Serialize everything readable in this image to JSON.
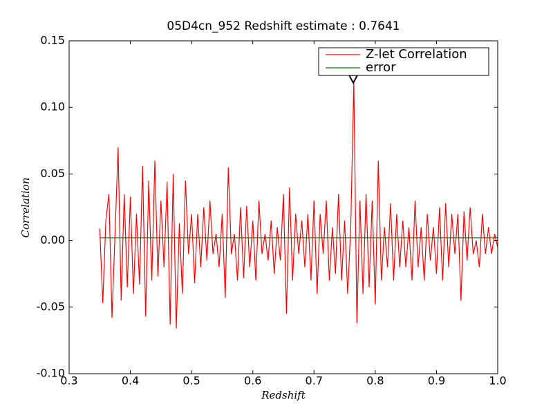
{
  "chart_data": {
    "type": "line",
    "title": "05D4cn_952 Redshift estimate : 0.7641",
    "xlabel": "Redshift",
    "ylabel": "Correlation",
    "xlim": [
      0.3,
      1.0
    ],
    "ylim": [
      -0.1,
      0.15
    ],
    "xticks": [
      0.3,
      0.4,
      0.5,
      0.6,
      0.7,
      0.8,
      0.9,
      {
        "value": 1.0,
        "label": "1.0"
      }
    ],
    "yticks": [
      {
        "value": -0.1,
        "label": "-0.10"
      },
      -0.05,
      {
        "value": 0,
        "label": "0.00"
      },
      0.05,
      {
        "value": 0.1,
        "label": "0.10"
      },
      0.15
    ],
    "legend": "upper right",
    "series": [
      {
        "name": "Z-let Correlation",
        "color": "#ff0000",
        "x": [
          0.35,
          0.355,
          0.36,
          0.365,
          0.37,
          0.375,
          0.38,
          0.385,
          0.39,
          0.395,
          0.4,
          0.405,
          0.41,
          0.415,
          0.42,
          0.425,
          0.43,
          0.435,
          0.44,
          0.445,
          0.45,
          0.455,
          0.46,
          0.465,
          0.47,
          0.475,
          0.48,
          0.485,
          0.49,
          0.495,
          0.5,
          0.505,
          0.51,
          0.515,
          0.52,
          0.525,
          0.53,
          0.535,
          0.54,
          0.545,
          0.55,
          0.555,
          0.56,
          0.565,
          0.57,
          0.575,
          0.58,
          0.585,
          0.59,
          0.595,
          0.6,
          0.605,
          0.61,
          0.615,
          0.62,
          0.625,
          0.63,
          0.635,
          0.64,
          0.645,
          0.65,
          0.655,
          0.66,
          0.665,
          0.67,
          0.675,
          0.68,
          0.685,
          0.69,
          0.695,
          0.7,
          0.705,
          0.71,
          0.715,
          0.72,
          0.725,
          0.73,
          0.735,
          0.74,
          0.745,
          0.75,
          0.755,
          0.76,
          0.765,
          0.77,
          0.775,
          0.78,
          0.785,
          0.79,
          0.795,
          0.8,
          0.805,
          0.81,
          0.815,
          0.82,
          0.825,
          0.83,
          0.835,
          0.84,
          0.845,
          0.85,
          0.855,
          0.86,
          0.865,
          0.87,
          0.875,
          0.88,
          0.885,
          0.89,
          0.895,
          0.9,
          0.905,
          0.91,
          0.915,
          0.92,
          0.925,
          0.93,
          0.935,
          0.94,
          0.945,
          0.95,
          0.955,
          0.96,
          0.965,
          0.97,
          0.975,
          0.98,
          0.985,
          0.99,
          0.995,
          1.0
        ],
        "values": [
          0.009,
          -0.047,
          0.015,
          0.035,
          -0.058,
          0.005,
          0.07,
          -0.045,
          0.035,
          -0.035,
          0.033,
          -0.04,
          0.02,
          -0.033,
          0.056,
          -0.057,
          0.045,
          -0.03,
          0.06,
          -0.027,
          0.03,
          -0.02,
          0.044,
          -0.063,
          0.05,
          -0.066,
          0.013,
          -0.04,
          0.045,
          -0.01,
          0.02,
          -0.032,
          0.02,
          -0.02,
          0.025,
          -0.015,
          0.03,
          -0.01,
          0.005,
          -0.02,
          0.02,
          -0.043,
          0.055,
          -0.01,
          0.005,
          -0.03,
          0.025,
          -0.028,
          0.026,
          -0.02,
          0.015,
          -0.03,
          0.03,
          -0.01,
          0.005,
          -0.015,
          0.015,
          -0.025,
          0.01,
          -0.015,
          0.035,
          -0.055,
          0.04,
          -0.03,
          0.02,
          -0.01,
          0.015,
          -0.02,
          0.02,
          -0.03,
          0.03,
          -0.04,
          0.02,
          -0.01,
          0.03,
          -0.03,
          0.01,
          -0.025,
          0.035,
          -0.03,
          0.015,
          -0.04,
          0.01,
          0.12,
          -0.062,
          0.03,
          -0.04,
          0.035,
          -0.035,
          0.03,
          -0.048,
          0.06,
          -0.03,
          0.01,
          -0.02,
          0.028,
          -0.03,
          0.02,
          -0.02,
          0.015,
          -0.02,
          0.01,
          -0.03,
          0.03,
          -0.02,
          0.01,
          -0.03,
          0.02,
          -0.015,
          0.01,
          -0.025,
          0.025,
          -0.03,
          0.028,
          -0.02,
          0.02,
          -0.01,
          0.02,
          -0.045,
          0.022,
          -0.015,
          0.025,
          -0.01,
          0,
          -0.02,
          0.02,
          -0.01,
          0.01,
          -0.01,
          0.005,
          -0.005
        ]
      },
      {
        "name": "error",
        "color": "#008000",
        "x": [
          0.35,
          1.0
        ],
        "values": [
          0.002,
          0.002
        ]
      }
    ],
    "peak_marker": {
      "x": 0.7641,
      "y": 0.12
    }
  }
}
